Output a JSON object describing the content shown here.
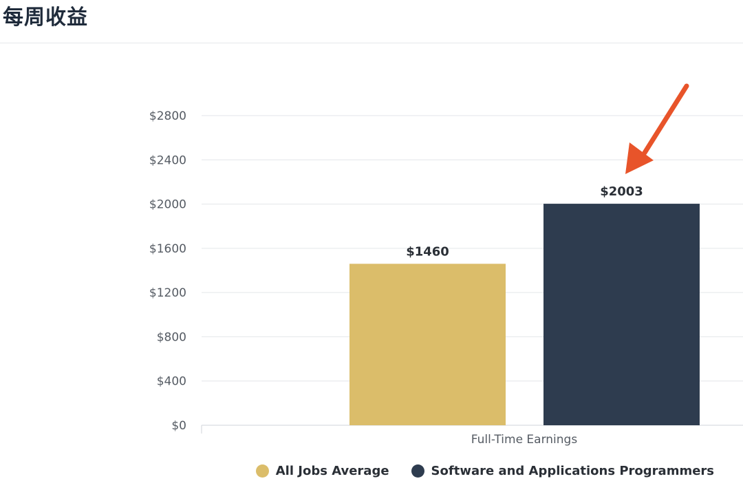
{
  "page": {
    "title": "每周收益"
  },
  "chart_data": {
    "type": "bar",
    "categories": [
      "Full-Time Earnings"
    ],
    "series": [
      {
        "name": "All Jobs Average",
        "values": [
          1460
        ],
        "color": "#dbbd6a",
        "data_label": "$1460"
      },
      {
        "name": "Software and Applications Programmers",
        "values": [
          2003
        ],
        "color": "#2e3c4f",
        "data_label": "$2003"
      }
    ],
    "ylim": [
      0,
      2800
    ],
    "yticks": [
      0,
      400,
      800,
      1200,
      1600,
      2000,
      2400,
      2800
    ],
    "ytick_labels": [
      "$0",
      "$400",
      "$800",
      "$1200",
      "$1600",
      "$2000",
      "$2400",
      "$2800"
    ],
    "xlabel": "",
    "ylabel": "",
    "grid": true,
    "legend_position": "bottom-right",
    "annotation": {
      "type": "arrow",
      "color": "#e8542a",
      "target_series": "Software and Applications Programmers"
    }
  }
}
